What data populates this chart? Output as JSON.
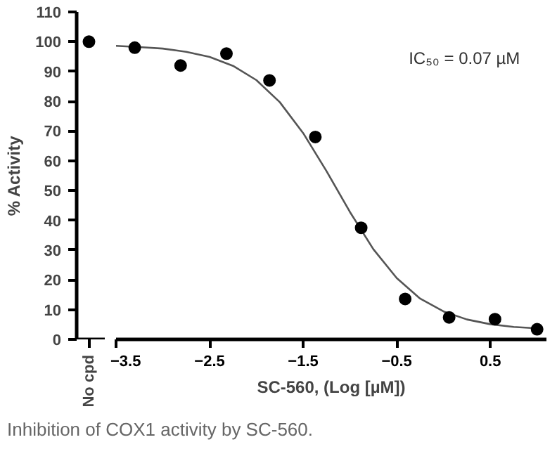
{
  "chart_data": [
    {
      "type": "scatter",
      "ylabel": "% Activity",
      "categories": [
        "No cpd"
      ],
      "ylim": [
        0,
        110
      ],
      "yticks": [
        0,
        10,
        20,
        30,
        40,
        50,
        60,
        70,
        80,
        90,
        100,
        110
      ],
      "marker": "circle",
      "grid": false,
      "series": [
        {
          "color": "#000000",
          "values": [
            100
          ]
        }
      ]
    },
    {
      "type": "scatter",
      "xlabel": "SC-560, (Log [µM])",
      "xlim": [
        -3.5,
        1.1
      ],
      "xticks": [
        -3.5,
        -2.5,
        -1.5,
        -0.5,
        0.5
      ],
      "ylim": [
        0,
        110
      ],
      "tick_labels": "x",
      "grid": false,
      "annotations": [
        "IC₅₀ = 0.07 µM",
        "Inhibition of COX1 activity by SC-560."
      ],
      "series": [
        {
          "type": "line",
          "marker": "none",
          "color": "#555555",
          "x": [
            -3.5,
            -3.25,
            -3.0,
            -2.75,
            -2.5,
            -2.25,
            -2.0,
            -1.75,
            -1.5,
            -1.25,
            -1.0,
            -0.75,
            -0.5,
            -0.25,
            0,
            0.25,
            0.5,
            0.75,
            1.0
          ],
          "values": [
            98.6,
            98.2,
            97.7,
            96.6,
            94.9,
            91.9,
            87.1,
            79.7,
            69.3,
            56.5,
            42.8,
            30.3,
            20.6,
            13.7,
            9.4,
            6.7,
            5.1,
            4.2,
            3.7
          ]
        },
        {
          "type": "scatter",
          "marker": "circle",
          "color": "#000000",
          "x": [
            -3.3,
            -2.81,
            -2.32,
            -1.86,
            -1.37,
            -0.88,
            -0.41,
            0.06,
            0.55,
            1.0
          ],
          "values": [
            98,
            92,
            96,
            87,
            68,
            37.5,
            13.6,
            7.4,
            6.8,
            3.4
          ]
        }
      ]
    }
  ]
}
